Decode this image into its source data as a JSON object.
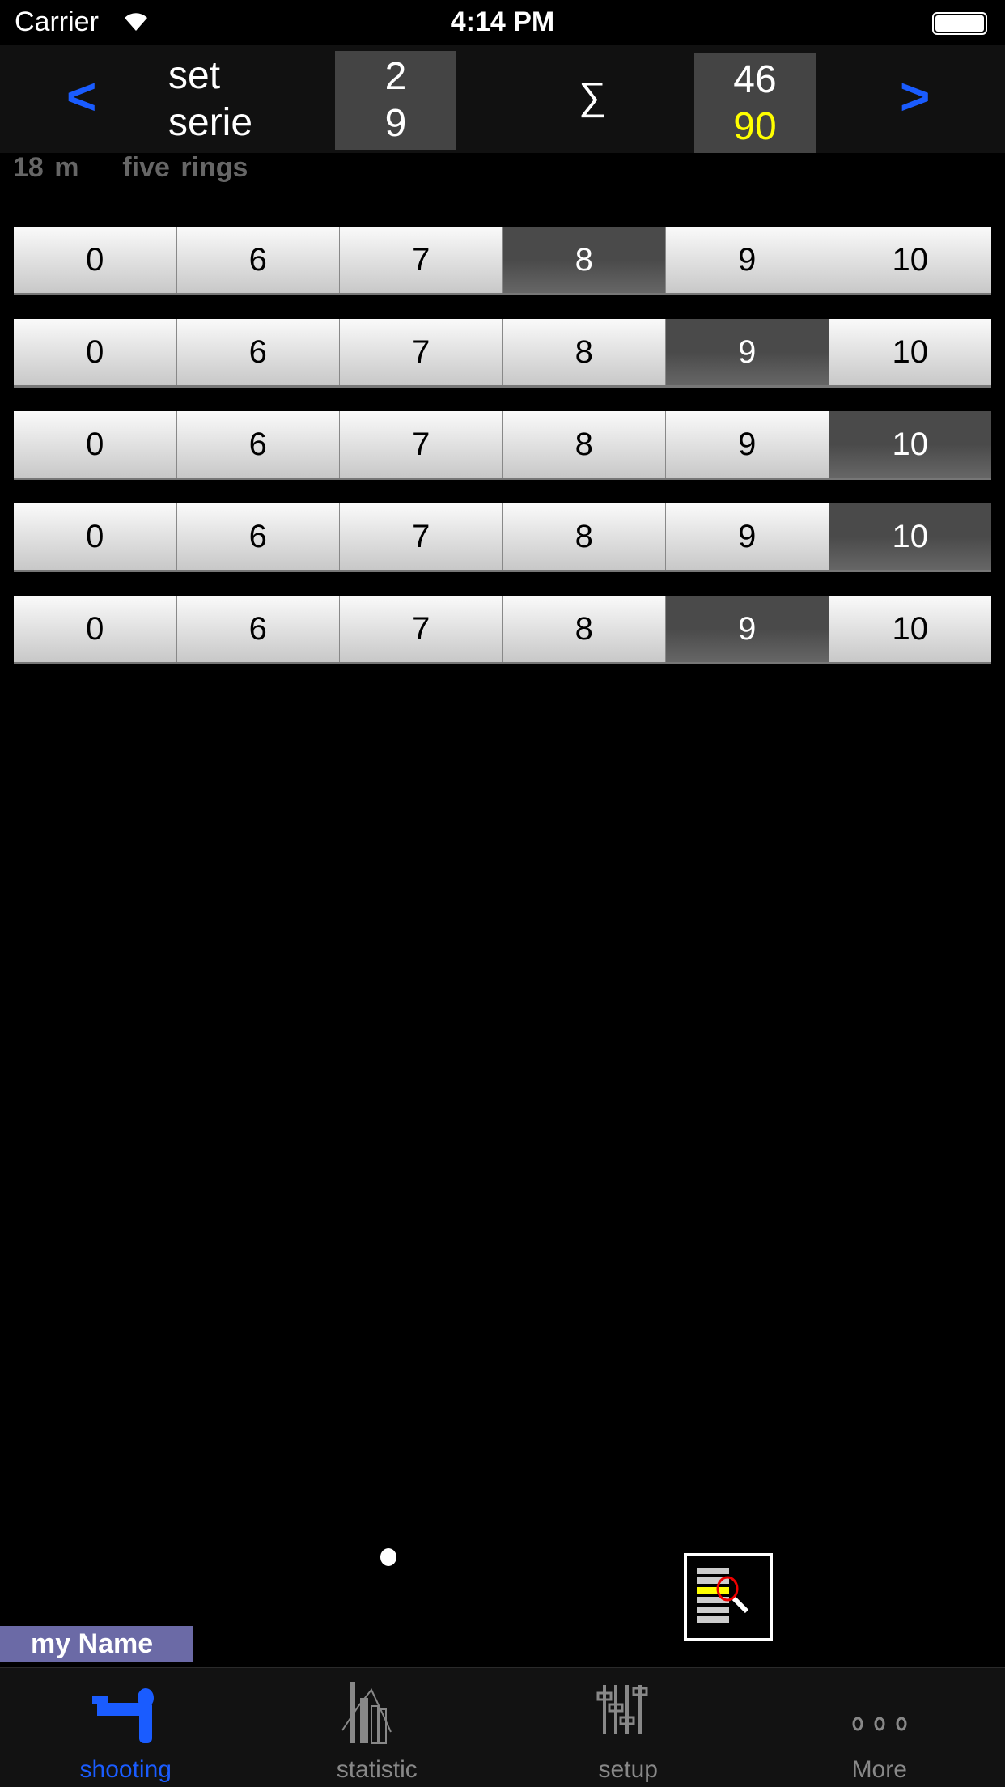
{
  "status_bar": {
    "carrier": "Carrier",
    "time": "4:14 PM"
  },
  "header": {
    "prev": "<",
    "next": ">",
    "set_label": "set",
    "serie_label": "serie",
    "set_value": "2",
    "serie_value": "9",
    "sum_symbol": "∑",
    "sum_total": "46",
    "sum_max": "90"
  },
  "info": {
    "distance": "18 m",
    "target": "five rings"
  },
  "score_options": [
    "0",
    "6",
    "7",
    "8",
    "9",
    "10"
  ],
  "rows": [
    {
      "selected": "8"
    },
    {
      "selected": "9"
    },
    {
      "selected": "10"
    },
    {
      "selected": "10"
    },
    {
      "selected": "9"
    }
  ],
  "page_indicator": {
    "pages": 1,
    "current": 1
  },
  "user_name": "my Name",
  "colors": {
    "accent": "#1a5cff",
    "sum_max": "#ffff00",
    "name_badge": "#6b6aa6"
  },
  "tabs": [
    {
      "label": "shooting",
      "icon": "shooter-icon",
      "active": true
    },
    {
      "label": "statistic",
      "icon": "chart-icon"
    },
    {
      "label": "setup",
      "icon": "sliders-icon"
    },
    {
      "label": "More",
      "icon": "more-icon"
    }
  ]
}
